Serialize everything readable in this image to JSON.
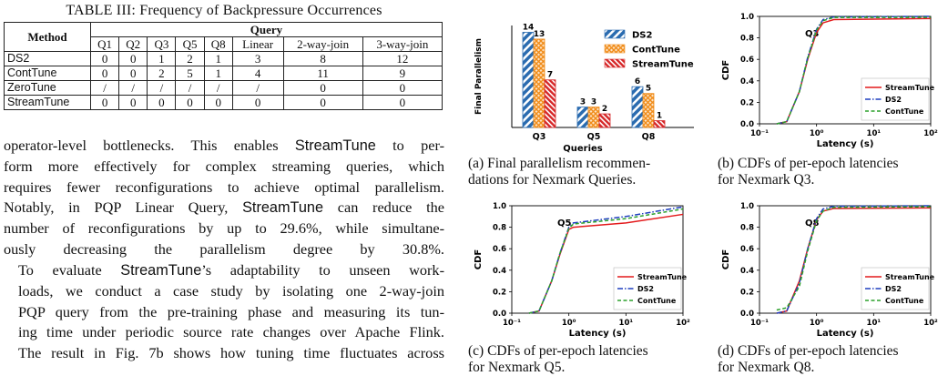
{
  "table": {
    "caption": "TABLE III: Frequency of Backpressure Occurrences",
    "method_header": "Method",
    "query_header": "Query",
    "columns": [
      "Q1",
      "Q2",
      "Q3",
      "Q5",
      "Q8",
      "Linear",
      "2-way-join",
      "3-way-join"
    ],
    "rows": [
      {
        "method": "DS2",
        "values": [
          "0",
          "0",
          "1",
          "2",
          "1",
          "3",
          "8",
          "12"
        ]
      },
      {
        "method": "ContTune",
        "values": [
          "0",
          "0",
          "2",
          "5",
          "1",
          "4",
          "11",
          "9"
        ]
      },
      {
        "method": "ZeroTune",
        "values": [
          "/",
          "/",
          "/",
          "/",
          "/",
          "/",
          "0",
          "0"
        ]
      },
      {
        "method": "StreamTune",
        "values": [
          "0",
          "0",
          "0",
          "0",
          "0",
          "0",
          "0",
          "0"
        ]
      }
    ]
  },
  "body_text": {
    "p1_lines": [
      "operator-level bottlenecks. This enables StreamTune to per-",
      "form more effectively for complex streaming queries, which",
      "requires fewer reconfigurations to achieve optimal parallelism.",
      "Notably, in PQP Linear Query, StreamTune can reduce the",
      "number of reconfigurations by up to 29.6%, while simultane-",
      "ously decreasing the parallelism degree by 30.8%."
    ],
    "p2_lines": [
      "To evaluate StreamTune’s adaptability to unseen work-",
      "loads, we conduct a case study by isolating one 2-way-join",
      "PQP query from the pre-training phase and measuring its tun-",
      "ing time under periodic source rate changes over Apache Flink.",
      "The result in Fig. 7b shows how tuning time fluctuates across"
    ]
  },
  "captions": {
    "a": [
      "(a) Final parallelism recommen-",
      "dations for Nexmark Queries."
    ],
    "b": [
      "(b) CDFs of per-epoch latencies",
      "for Nexmark Q3."
    ],
    "c": [
      "(c) CDFs of per-epoch latencies",
      "for Nexmark Q5."
    ],
    "d": [
      "(d) CDFs of per-epoch latencies",
      "for Nexmark Q8."
    ]
  },
  "chart_data": [
    {
      "type": "bar",
      "title": "",
      "xlabel": "Queries",
      "ylabel": "Final Parallelism",
      "categories": [
        "Q3",
        "Q5",
        "Q8"
      ],
      "series": [
        {
          "name": "DS2",
          "values": [
            14,
            3,
            6
          ],
          "color": "#2b6cb0"
        },
        {
          "name": "ContTune",
          "values": [
            13,
            3,
            5
          ],
          "color": "#f08c1a"
        },
        {
          "name": "StreamTune",
          "values": [
            7,
            2,
            1
          ],
          "color": "#d62728"
        }
      ],
      "ylim": [
        0,
        15
      ],
      "legend": "top-right"
    },
    {
      "type": "line",
      "title": "Q3",
      "xlabel": "Latency (s)",
      "ylabel": "CDF",
      "x_scale": "log",
      "xlim": [
        0.1,
        100
      ],
      "ylim": [
        0,
        1
      ],
      "xticks": [
        "10⁻¹",
        "10⁰",
        "10¹",
        "10²"
      ],
      "yticks": [
        "0.0",
        "0.2",
        "0.4",
        "0.6",
        "0.8",
        "1.0"
      ],
      "series": [
        {
          "name": "StreamTune",
          "color": "#e31a1c",
          "style": "solid",
          "x": [
            0.2,
            0.3,
            0.5,
            0.7,
            1,
            1.3,
            2,
            100
          ],
          "y": [
            0,
            0.02,
            0.3,
            0.6,
            0.85,
            0.94,
            0.97,
            0.98
          ]
        },
        {
          "name": "DS2",
          "color": "#1f3fbf",
          "style": "dashdot",
          "x": [
            0.2,
            0.3,
            0.5,
            0.7,
            1,
            1.3,
            2,
            100
          ],
          "y": [
            0,
            0.02,
            0.3,
            0.62,
            0.88,
            0.97,
            0.995,
            1.0
          ]
        },
        {
          "name": "ContTune",
          "color": "#2ca02c",
          "style": "dashed",
          "x": [
            0.2,
            0.3,
            0.5,
            0.7,
            1,
            1.3,
            2,
            100
          ],
          "y": [
            0,
            0.02,
            0.3,
            0.61,
            0.87,
            0.96,
            0.99,
            0.99
          ]
        }
      ]
    },
    {
      "type": "line",
      "title": "Q5",
      "xlabel": "Latency (s)",
      "ylabel": "CDF",
      "x_scale": "log",
      "xlim": [
        0.1,
        100
      ],
      "ylim": [
        0,
        1
      ],
      "xticks": [
        "10⁻¹",
        "10⁰",
        "10¹",
        "10²"
      ],
      "yticks": [
        "0.0",
        "0.2",
        "0.4",
        "0.6",
        "0.8",
        "1.0"
      ],
      "series": [
        {
          "name": "StreamTune",
          "color": "#e31a1c",
          "style": "solid",
          "x": [
            0.2,
            0.3,
            0.5,
            0.7,
            1,
            1.2,
            10,
            100
          ],
          "y": [
            0,
            0.02,
            0.3,
            0.55,
            0.78,
            0.8,
            0.84,
            0.92
          ]
        },
        {
          "name": "DS2",
          "color": "#1f3fbf",
          "style": "dashdot",
          "x": [
            0.2,
            0.3,
            0.5,
            0.7,
            1,
            1.2,
            10,
            100
          ],
          "y": [
            0,
            0.02,
            0.3,
            0.56,
            0.8,
            0.84,
            0.9,
            0.99
          ]
        },
        {
          "name": "ContTune",
          "color": "#2ca02c",
          "style": "dashed",
          "x": [
            0.2,
            0.3,
            0.5,
            0.7,
            1,
            1.2,
            10,
            100
          ],
          "y": [
            0,
            0.02,
            0.3,
            0.56,
            0.79,
            0.83,
            0.88,
            0.97
          ]
        }
      ]
    },
    {
      "type": "line",
      "title": "Q8",
      "xlabel": "Latency (s)",
      "ylabel": "CDF",
      "x_scale": "log",
      "xlim": [
        0.1,
        100
      ],
      "ylim": [
        0,
        1
      ],
      "xticks": [
        "10⁻¹",
        "10⁰",
        "10¹",
        "10²"
      ],
      "yticks": [
        "0.0",
        "0.2",
        "0.4",
        "0.6",
        "0.8",
        "1.0"
      ],
      "series": [
        {
          "name": "StreamTune",
          "color": "#e31a1c",
          "style": "solid",
          "x": [
            0.2,
            0.3,
            0.5,
            0.7,
            1,
            1.3,
            2,
            100
          ],
          "y": [
            0,
            0.02,
            0.3,
            0.6,
            0.87,
            0.95,
            0.975,
            0.98
          ]
        },
        {
          "name": "DS2",
          "color": "#1f3fbf",
          "style": "dashdot",
          "x": [
            0.2,
            0.3,
            0.5,
            0.7,
            1,
            1.3,
            2,
            100
          ],
          "y": [
            0,
            0.02,
            0.28,
            0.6,
            0.88,
            0.97,
            0.995,
            1.0
          ]
        },
        {
          "name": "ContTune",
          "color": "#2ca02c",
          "style": "dashed",
          "x": [
            0.2,
            0.3,
            0.5,
            0.7,
            1,
            1.3,
            2,
            100
          ],
          "y": [
            0.03,
            0.05,
            0.25,
            0.58,
            0.86,
            0.95,
            0.985,
            0.99
          ]
        }
      ]
    }
  ]
}
